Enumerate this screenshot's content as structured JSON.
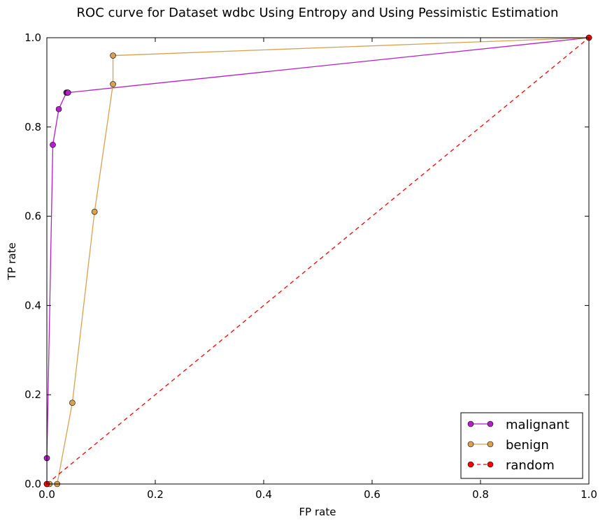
{
  "chart_data": {
    "type": "line",
    "title": "ROC curve for Dataset wdbc Using Entropy and Using Pessimistic Estimation",
    "xlabel": "FP rate",
    "ylabel": "TP rate",
    "xlim": [
      0.0,
      1.0
    ],
    "ylim": [
      0.0,
      1.0
    ],
    "xticks": [
      "0.0",
      "0.2",
      "0.4",
      "0.6",
      "0.8",
      "1.0"
    ],
    "yticks": [
      "0.0",
      "0.2",
      "0.4",
      "0.6",
      "0.8",
      "1.0"
    ],
    "grid": false,
    "legend_position": "lower-right",
    "series": [
      {
        "name": "malignant",
        "color": "#b41fc7",
        "dashed": false,
        "points": [
          [
            0.0,
            0.0
          ],
          [
            0.0,
            0.058
          ],
          [
            0.011,
            0.76
          ],
          [
            0.022,
            0.84
          ],
          [
            0.036,
            0.877
          ],
          [
            0.038,
            0.877
          ],
          [
            0.039,
            0.877
          ],
          [
            1.0,
            1.0
          ]
        ]
      },
      {
        "name": "benign",
        "color": "#d8a150",
        "dashed": false,
        "points": [
          [
            0.0,
            0.0
          ],
          [
            0.005,
            0.0
          ],
          [
            0.019,
            0.0
          ],
          [
            0.047,
            0.182
          ],
          [
            0.088,
            0.61
          ],
          [
            0.122,
            0.896
          ],
          [
            0.122,
            0.96
          ],
          [
            1.0,
            1.0
          ]
        ]
      },
      {
        "name": "random",
        "color": "#ff0000",
        "dashed": true,
        "points": [
          [
            0.0,
            0.0
          ],
          [
            1.0,
            1.0
          ]
        ]
      }
    ]
  }
}
